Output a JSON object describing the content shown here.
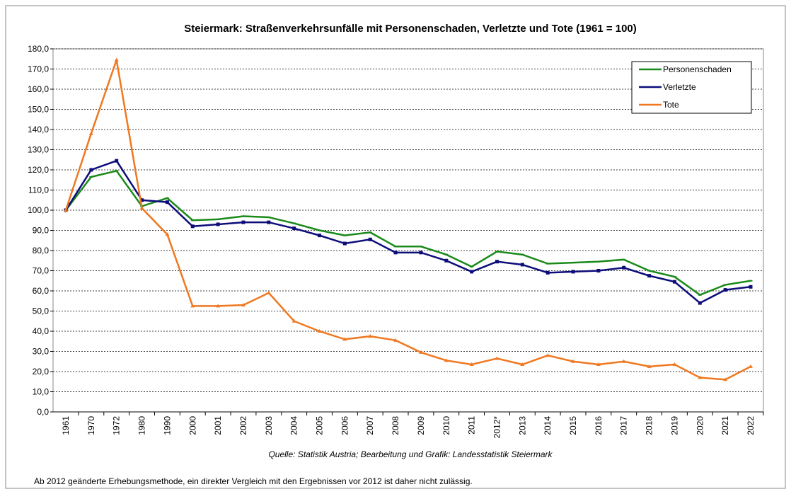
{
  "chart_data": {
    "type": "line",
    "title": "Steiermark: Straßenverkehrsunfälle mit Personenschaden, Verletzte und Tote  (1961 =  100)",
    "source": "Quelle: Statistik Austria; Bearbeitung und Grafik: Landesstatistik Steiermark",
    "note": "Ab 2012 geänderte Erhebungsmethode, ein direkter Vergleich mit den Ergebnissen vor 2012 ist daher nicht zulässig.",
    "categories": [
      "1961",
      "1970",
      "1972",
      "1980",
      "1990",
      "2000",
      "2001",
      "2002",
      "2003",
      "2004",
      "2005",
      "2006",
      "2007",
      "2008",
      "2009",
      "2010",
      "2011",
      "2012*",
      "2013",
      "2014",
      "2015",
      "2016",
      "2017",
      "2018",
      "2019",
      "2020",
      "2021",
      "2022"
    ],
    "series": [
      {
        "name": "Personenschaden",
        "color": "#1a8a1a",
        "values": [
          100,
          116.5,
          119.5,
          102,
          106,
          95,
          95.5,
          97,
          96.5,
          93.5,
          90,
          87.5,
          89,
          82,
          82,
          78,
          72,
          79.5,
          78,
          73.5,
          74,
          74.5,
          75.5,
          70,
          67,
          58,
          63,
          65
        ]
      },
      {
        "name": "Verletzte",
        "color": "#0d0d7a",
        "values": [
          100,
          120,
          124.5,
          105,
          104,
          92,
          93,
          94,
          94,
          91,
          87.5,
          83.5,
          85.5,
          79,
          79,
          75,
          69.5,
          74.5,
          73,
          69,
          69.5,
          70,
          71.5,
          67.5,
          64.5,
          54,
          60.5,
          62
        ]
      },
      {
        "name": "Tote",
        "color": "#f07820",
        "values": [
          100,
          138,
          174.5,
          101,
          88,
          52.5,
          52.5,
          53,
          59,
          45,
          40,
          36,
          37.5,
          35.5,
          29.5,
          25.5,
          23.5,
          26.5,
          23.5,
          28,
          25,
          23.5,
          25,
          22.5,
          23.5,
          17,
          16,
          22.5
        ]
      }
    ],
    "ylim": [
      0,
      180
    ],
    "yticks": [
      {
        "value": 0,
        "label": "0,0"
      },
      {
        "value": 10,
        "label": "10,0"
      },
      {
        "value": 20,
        "label": "20,0"
      },
      {
        "value": 30,
        "label": "30,0"
      },
      {
        "value": 40,
        "label": "40,0"
      },
      {
        "value": 50,
        "label": "50,0"
      },
      {
        "value": 60,
        "label": "60,0"
      },
      {
        "value": 70,
        "label": "70,0"
      },
      {
        "value": 80,
        "label": "80,0"
      },
      {
        "value": 90,
        "label": "90,0"
      },
      {
        "value": 100,
        "label": "100,0"
      },
      {
        "value": 110,
        "label": "110,0"
      },
      {
        "value": 120,
        "label": "120,0"
      },
      {
        "value": 130,
        "label": "130,0"
      },
      {
        "value": 140,
        "label": "140,0"
      },
      {
        "value": 150,
        "label": "150,0"
      },
      {
        "value": 160,
        "label": "160,0"
      },
      {
        "value": 170,
        "label": "170,0"
      },
      {
        "value": 180,
        "label": "180,0"
      }
    ],
    "grid": true,
    "legend": "top-right"
  }
}
